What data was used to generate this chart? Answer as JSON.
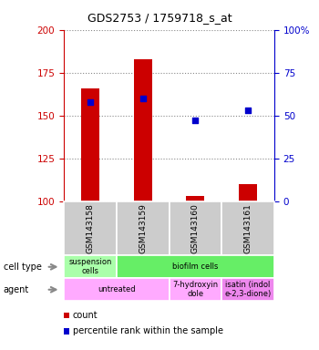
{
  "title": "GDS2753 / 1759718_s_at",
  "samples": [
    "GSM143158",
    "GSM143159",
    "GSM143160",
    "GSM143161"
  ],
  "count_values": [
    166,
    183,
    103,
    110
  ],
  "percentile_values": [
    58,
    60,
    47,
    53
  ],
  "ylim_left": [
    100,
    200
  ],
  "ylim_right": [
    0,
    100
  ],
  "yticks_left": [
    100,
    125,
    150,
    175,
    200
  ],
  "yticks_right": [
    0,
    25,
    50,
    75,
    100
  ],
  "ytick_labels_right": [
    "0",
    "25",
    "50",
    "75",
    "100%"
  ],
  "bar_color": "#cc0000",
  "percentile_color": "#0000cc",
  "cell_spans": [
    1,
    3
  ],
  "cell_colors": [
    "#aaffaa",
    "#66ee66"
  ],
  "cell_labels": [
    "suspension\ncells",
    "biofilm cells"
  ],
  "agent_spans": [
    2,
    1,
    1
  ],
  "agent_colors": [
    "#ffaaff",
    "#ffaaff",
    "#ee88ee"
  ],
  "agent_labels": [
    "untreated",
    "7-hydroxyin\ndole",
    "isatin (indol\ne-2,3-dione)"
  ],
  "left_label_cell_type": "cell type",
  "left_label_agent": "agent",
  "legend_count": "count",
  "legend_percentile": "percentile rank within the sample",
  "bar_width": 0.35,
  "grid_color": "#888888",
  "bg_color": "#ffffff",
  "plot_bg": "#ffffff",
  "left_axis_color": "#cc0000",
  "right_axis_color": "#0000cc",
  "sample_box_color": "#cccccc"
}
